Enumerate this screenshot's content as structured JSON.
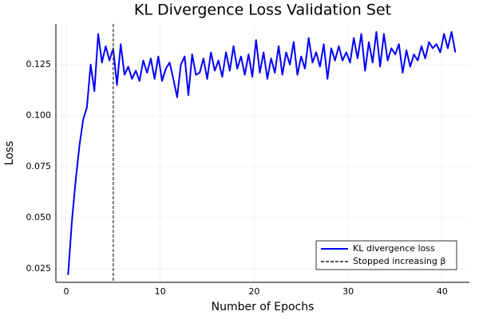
{
  "chart_data": {
    "type": "line",
    "title": "KL Divergence Loss Validation Set",
    "x_label": "Number of Epochs",
    "y_label": "Loss",
    "xlim": [
      -1.1,
      42.9
    ],
    "ylim": [
      0.0184,
      0.1449
    ],
    "xticks": [
      0,
      10,
      20,
      30,
      40
    ],
    "yticks": [
      0.025,
      {
        "value": 0.05,
        "label": "0.050"
      },
      0.075,
      {
        "value": 0.1,
        "label": "0.100"
      },
      0.125
    ],
    "grid": true,
    "legend_position": "bottom-right",
    "x": [
      0.2,
      0.6,
      1.0,
      1.4,
      1.8,
      2.2,
      2.6,
      3.0,
      3.4,
      3.8,
      4.2,
      4.6,
      5.0,
      5.4,
      5.8,
      6.2,
      6.6,
      7.0,
      7.4,
      7.8,
      8.2,
      8.6,
      9.0,
      9.4,
      9.8,
      10.2,
      10.6,
      11.0,
      11.4,
      11.8,
      12.2,
      12.6,
      13.0,
      13.4,
      13.8,
      14.2,
      14.6,
      15.0,
      15.4,
      15.8,
      16.2,
      16.6,
      17.0,
      17.4,
      17.8,
      18.2,
      18.6,
      19.0,
      19.4,
      19.8,
      20.2,
      20.6,
      21.0,
      21.4,
      21.8,
      22.2,
      22.6,
      23.0,
      23.4,
      23.8,
      24.2,
      24.6,
      25.0,
      25.4,
      25.8,
      26.2,
      26.6,
      27.0,
      27.4,
      27.8,
      28.2,
      28.6,
      29.0,
      29.4,
      29.8,
      30.2,
      30.6,
      31.0,
      31.4,
      31.8,
      32.2,
      32.6,
      33.0,
      33.4,
      33.8,
      34.2,
      34.6,
      35.0,
      35.4,
      35.8,
      36.2,
      36.6,
      37.0,
      37.4,
      37.8,
      38.2,
      38.6,
      39.0,
      39.4,
      39.8,
      40.2,
      40.6,
      41.0,
      41.4
    ],
    "series": [
      {
        "name": "KL divergence loss",
        "color": "#0000ff",
        "values": [
          0.022,
          0.048,
          0.068,
          0.085,
          0.098,
          0.104,
          0.125,
          0.112,
          0.14,
          0.126,
          0.134,
          0.127,
          0.133,
          0.115,
          0.135,
          0.12,
          0.124,
          0.118,
          0.122,
          0.117,
          0.127,
          0.121,
          0.128,
          0.118,
          0.129,
          0.117,
          0.123,
          0.126,
          0.118,
          0.109,
          0.125,
          0.129,
          0.11,
          0.13,
          0.12,
          0.121,
          0.128,
          0.118,
          0.131,
          0.122,
          0.127,
          0.119,
          0.131,
          0.122,
          0.134,
          0.123,
          0.129,
          0.12,
          0.13,
          0.119,
          0.137,
          0.121,
          0.131,
          0.118,
          0.128,
          0.121,
          0.134,
          0.12,
          0.131,
          0.125,
          0.136,
          0.12,
          0.129,
          0.123,
          0.138,
          0.126,
          0.131,
          0.124,
          0.135,
          0.118,
          0.133,
          0.127,
          0.134,
          0.127,
          0.131,
          0.126,
          0.138,
          0.128,
          0.14,
          0.122,
          0.136,
          0.126,
          0.141,
          0.124,
          0.14,
          0.127,
          0.133,
          0.13,
          0.135,
          0.121,
          0.132,
          0.124,
          0.13,
          0.127,
          0.134,
          0.128,
          0.136,
          0.133,
          0.135,
          0.131,
          0.14,
          0.133,
          0.141,
          0.131
        ]
      }
    ],
    "vline": {
      "name": "Stopped increasing β",
      "x": 5,
      "color": "#555555"
    }
  }
}
